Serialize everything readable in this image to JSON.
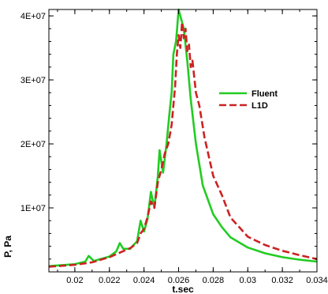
{
  "chart_data": {
    "type": "line",
    "title": "",
    "xlabel": "t.sec",
    "ylabel": "P, Pa",
    "xlim": [
      0.0185,
      0.034
    ],
    "ylim": [
      0,
      41000000
    ],
    "grid": false,
    "legend_position": "right",
    "x_ticks": [
      {
        "value": 0.02,
        "label": "0.02"
      },
      {
        "value": 0.022,
        "label": "0.022"
      },
      {
        "value": 0.024,
        "label": "0.024"
      },
      {
        "value": 0.026,
        "label": "0.026"
      },
      {
        "value": 0.028,
        "label": "0.028"
      },
      {
        "value": 0.03,
        "label": "0.03"
      },
      {
        "value": 0.032,
        "label": "0.032"
      },
      {
        "value": 0.034,
        "label": "0.034"
      }
    ],
    "y_ticks": [
      {
        "value": 10000000,
        "label": "1E+07"
      },
      {
        "value": 20000000,
        "label": "2E+07"
      },
      {
        "value": 30000000,
        "label": "3E+07"
      },
      {
        "value": 40000000,
        "label": "4E+07"
      }
    ],
    "series": [
      {
        "name": "Fluent",
        "color": "#22cc22",
        "dash": "solid",
        "points": [
          [
            0.0185,
            900000
          ],
          [
            0.02,
            1200000
          ],
          [
            0.0206,
            1600000
          ],
          [
            0.0208,
            2500000
          ],
          [
            0.0211,
            1700000
          ],
          [
            0.022,
            2400000
          ],
          [
            0.0224,
            3200000
          ],
          [
            0.0226,
            4500000
          ],
          [
            0.0228,
            3600000
          ],
          [
            0.0232,
            3600000
          ],
          [
            0.0236,
            4800000
          ],
          [
            0.0238,
            8000000
          ],
          [
            0.024,
            6300000
          ],
          [
            0.0242,
            8200000
          ],
          [
            0.0244,
            12500000
          ],
          [
            0.0246,
            10000000
          ],
          [
            0.0248,
            15000000
          ],
          [
            0.0249,
            19000000
          ],
          [
            0.0251,
            15500000
          ],
          [
            0.0253,
            20000000
          ],
          [
            0.0255,
            25500000
          ],
          [
            0.0256,
            28000000
          ],
          [
            0.0257,
            34000000
          ],
          [
            0.02585,
            36000000
          ],
          [
            0.0259,
            37500000
          ],
          [
            0.026,
            41000000
          ],
          [
            0.0261,
            40000000
          ],
          [
            0.0263,
            38000000
          ],
          [
            0.0265,
            33000000
          ],
          [
            0.0267,
            27000000
          ],
          [
            0.027,
            20000000
          ],
          [
            0.0274,
            13500000
          ],
          [
            0.028,
            9000000
          ],
          [
            0.0285,
            7000000
          ],
          [
            0.029,
            5400000
          ],
          [
            0.03,
            3800000
          ],
          [
            0.031,
            2900000
          ],
          [
            0.032,
            2300000
          ],
          [
            0.033,
            1900000
          ],
          [
            0.034,
            1600000
          ]
        ]
      },
      {
        "name": "L1D",
        "color": "#cc2222",
        "dash": "dashed",
        "points": [
          [
            0.0185,
            800000
          ],
          [
            0.02,
            1100000
          ],
          [
            0.021,
            1500000
          ],
          [
            0.022,
            2300000
          ],
          [
            0.0226,
            3000000
          ],
          [
            0.0232,
            3700000
          ],
          [
            0.0236,
            4500000
          ],
          [
            0.0238,
            6000000
          ],
          [
            0.024,
            6700000
          ],
          [
            0.0242,
            8500000
          ],
          [
            0.0244,
            11000000
          ],
          [
            0.0246,
            10000000
          ],
          [
            0.0248,
            14000000
          ],
          [
            0.025,
            16000000
          ],
          [
            0.0252,
            18500000
          ],
          [
            0.0254,
            20000000
          ],
          [
            0.0256,
            23000000
          ],
          [
            0.0257,
            26000000
          ],
          [
            0.0258,
            29000000
          ],
          [
            0.0259,
            34000000
          ],
          [
            0.026,
            37000000
          ],
          [
            0.0261,
            35000000
          ],
          [
            0.0262,
            39000000
          ],
          [
            0.0263,
            36500000
          ],
          [
            0.0264,
            38000000
          ],
          [
            0.0265,
            34500000
          ],
          [
            0.0266,
            35500000
          ],
          [
            0.0267,
            32000000
          ],
          [
            0.0268,
            33000000
          ],
          [
            0.027,
            28000000
          ],
          [
            0.0272,
            26000000
          ],
          [
            0.0275,
            21000000
          ],
          [
            0.028,
            15000000
          ],
          [
            0.0285,
            12000000
          ],
          [
            0.029,
            8500000
          ],
          [
            0.0295,
            7000000
          ],
          [
            0.03,
            5500000
          ],
          [
            0.031,
            4200000
          ],
          [
            0.032,
            3300000
          ],
          [
            0.033,
            2600000
          ],
          [
            0.034,
            2000000
          ]
        ]
      }
    ]
  }
}
